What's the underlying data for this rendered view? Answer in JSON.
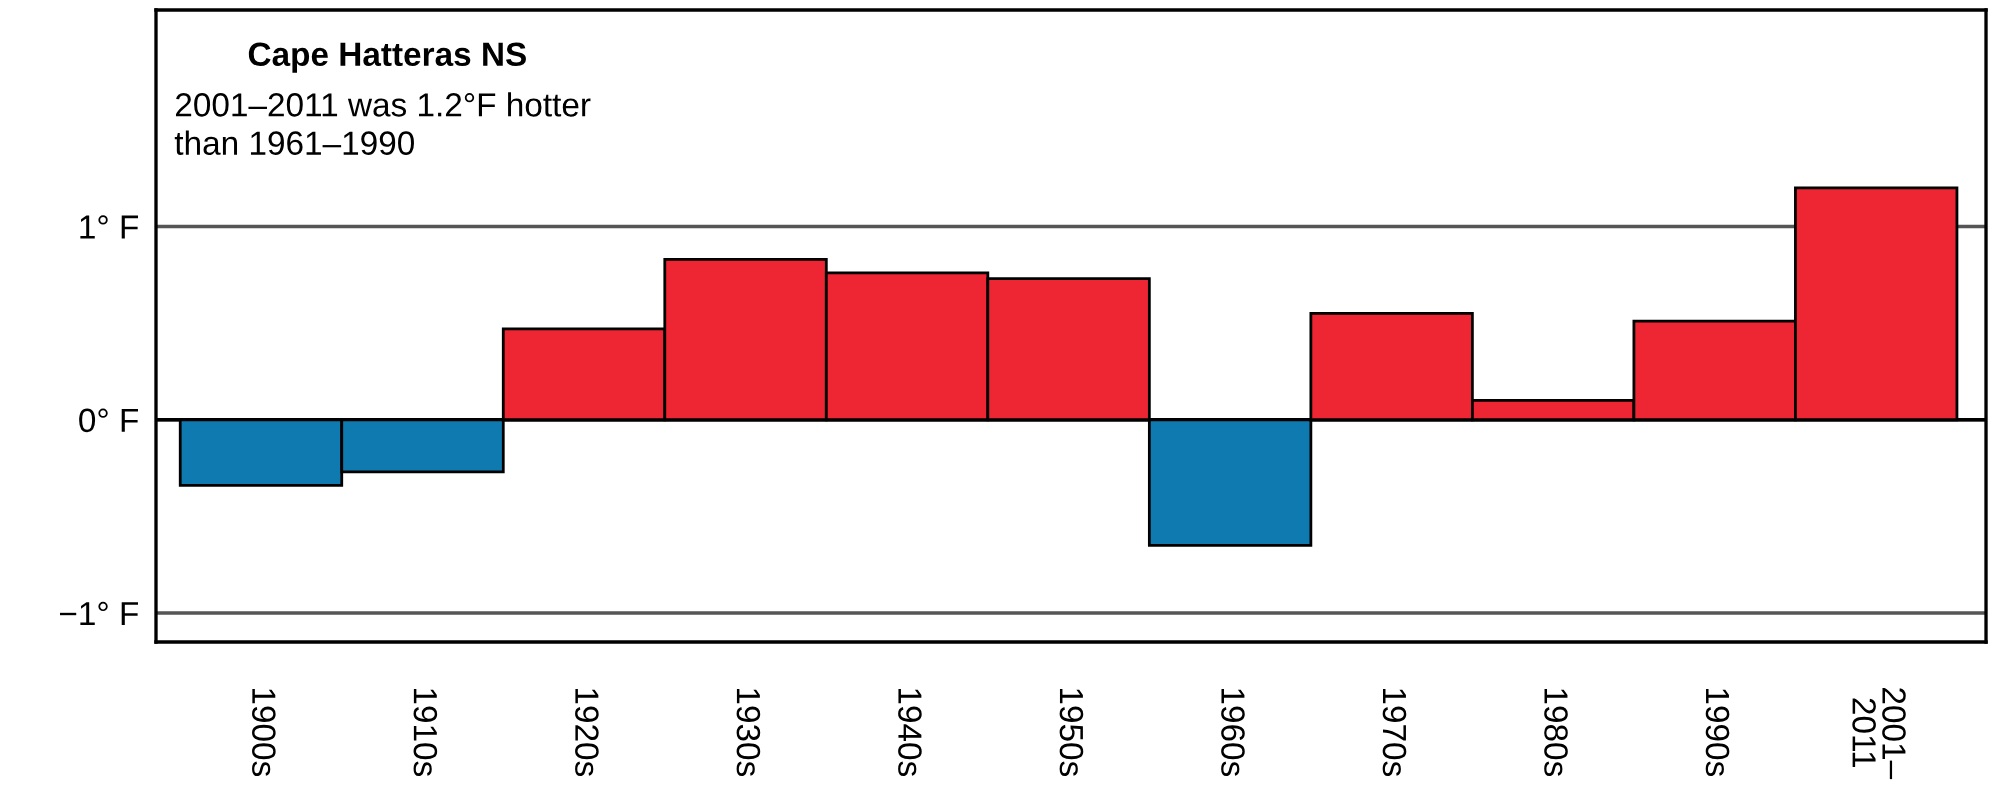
{
  "chart_data": {
    "type": "bar",
    "title": "Cape Hatteras NS",
    "subtitle": "2001–2011 was 1.2°F hotter\nthan 1961–1990",
    "categories": [
      "1900s",
      "1910s",
      "1920s",
      "1930s",
      "1940s",
      "1950s",
      "1960s",
      "1970s",
      "1980s",
      "1990s",
      "2001–\n2011"
    ],
    "values": [
      -0.34,
      -0.27,
      0.47,
      0.83,
      0.76,
      0.73,
      -0.65,
      0.55,
      0.1,
      0.51,
      1.2
    ],
    "colors": [
      "#0f7ab0",
      "#0f7ab0",
      "#ee2532",
      "#ee2532",
      "#ee2532",
      "#ee2532",
      "#0f7ab0",
      "#ee2532",
      "#ee2532",
      "#ee2532",
      "#ee2532"
    ],
    "ylim": [
      -1.15,
      2.12
    ],
    "yticks": [
      {
        "value": -1,
        "label": "−1° F"
      },
      {
        "value": 0,
        "label": "0° F"
      },
      {
        "value": 1,
        "label": "1° F"
      }
    ],
    "grid": "y",
    "legend": false
  }
}
